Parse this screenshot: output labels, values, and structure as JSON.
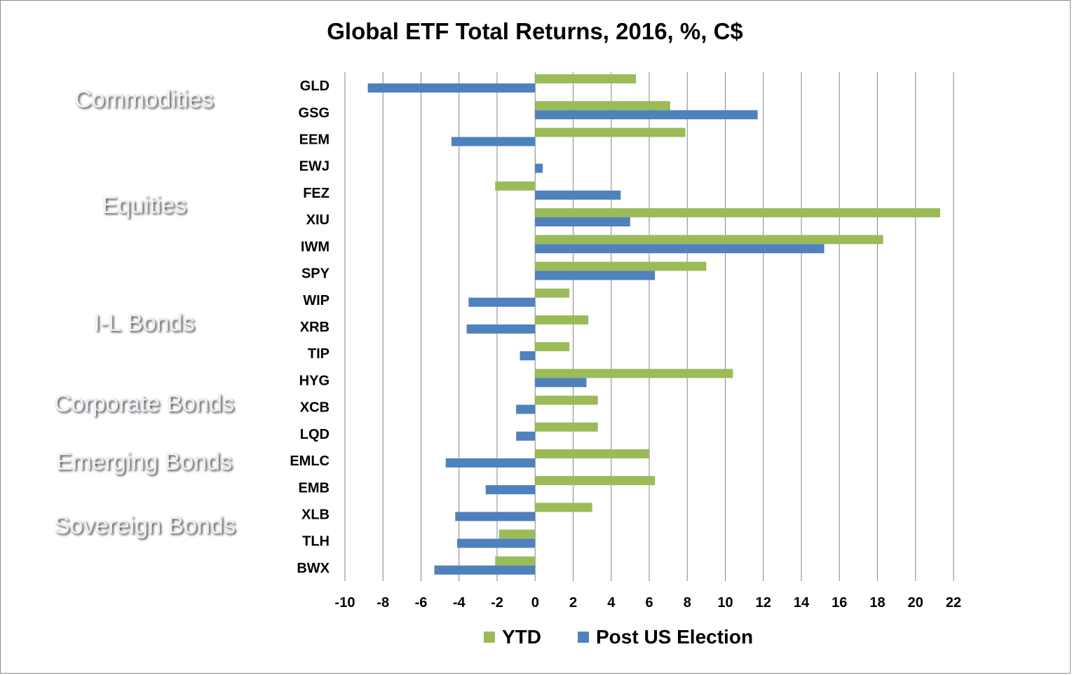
{
  "chart_data": {
    "type": "bar",
    "orientation": "horizontal",
    "title": "Global ETF Total Returns, 2016, %, C$",
    "categories": [
      "GLD",
      "GSG",
      "EEM",
      "EWJ",
      "FEZ",
      "XIU",
      "IWM",
      "SPY",
      "WIP",
      "XRB",
      "TIP",
      "HYG",
      "XCB",
      "LQD",
      "EMLC",
      "EMB",
      "XLB",
      "TLH",
      "BWX"
    ],
    "series": [
      {
        "name": "YTD",
        "color": "#9bbb59",
        "values": [
          5.3,
          7.1,
          7.9,
          0.0,
          -2.1,
          21.3,
          18.3,
          9.0,
          1.8,
          2.8,
          1.8,
          10.4,
          3.3,
          3.3,
          6.0,
          6.3,
          3.0,
          -1.9,
          -2.1
        ]
      },
      {
        "name": "Post US Election",
        "color": "#4f81bd",
        "values": [
          -8.8,
          11.7,
          -4.4,
          0.4,
          4.5,
          5.0,
          15.2,
          6.3,
          -3.5,
          -3.6,
          -0.8,
          2.7,
          -1.0,
          -1.0,
          -4.7,
          -2.6,
          -4.2,
          -4.1,
          -5.3
        ]
      }
    ],
    "xlim": [
      -10,
      22
    ],
    "xticks": [
      -10,
      -8,
      -6,
      -4,
      -2,
      0,
      2,
      4,
      6,
      8,
      10,
      12,
      14,
      16,
      18,
      20,
      22
    ],
    "grid": "vertical",
    "legend": "bottom",
    "groups": [
      {
        "label": "Commodities",
        "color": "#ffc000"
      },
      {
        "label": "Equities",
        "color": "#a6a6a6"
      },
      {
        "label": "I-L Bonds",
        "color": "#70ad47"
      },
      {
        "label": "Corporate Bonds",
        "color": "#ed7d31"
      },
      {
        "label": "Emerging Bonds",
        "color": "#ffc000"
      },
      {
        "label": "Sovereign Bonds",
        "color": "#5b9bd5"
      }
    ]
  }
}
